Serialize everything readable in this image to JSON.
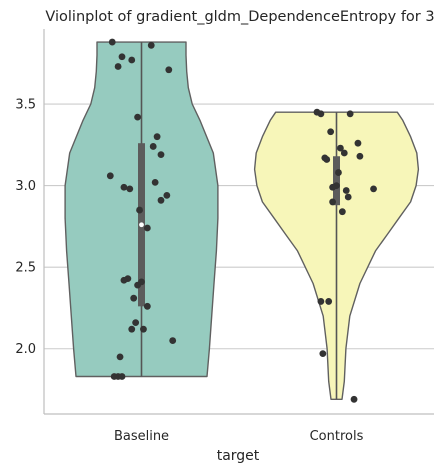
{
  "chart_data": {
    "type": "violin",
    "title": "Violinplot of gradient_gldm_DependenceEntropy for 3",
    "xlabel": "target",
    "ylabel": "",
    "categories": [
      "Baseline",
      "Controls"
    ],
    "ylim": [
      1.6,
      3.96
    ],
    "yticks": [
      2.0,
      2.5,
      3.0,
      3.5
    ],
    "ytick_labels": [
      "2.0",
      "2.5",
      "3.0",
      "3.5"
    ],
    "grid": "horizontal",
    "colors": {
      "Baseline": "#96cbbf",
      "Controls": "#f7f6b9",
      "outline": "#606060",
      "points": "#333333",
      "grid": "#cccccc"
    },
    "violins": [
      {
        "category": "Baseline",
        "min": 1.83,
        "max": 3.88,
        "q1": 2.26,
        "median": 2.76,
        "q3": 3.26,
        "density_y": [
          1.83,
          2.0,
          2.2,
          2.4,
          2.6,
          2.8,
          3.0,
          3.2,
          3.4,
          3.5,
          3.6,
          3.7,
          3.8,
          3.88
        ],
        "density_halfwidth": [
          0.84,
          0.87,
          0.9,
          0.93,
          0.96,
          0.98,
          0.98,
          0.92,
          0.75,
          0.65,
          0.6,
          0.58,
          0.57,
          0.57
        ],
        "points": [
          3.88,
          3.86,
          3.79,
          3.77,
          3.73,
          3.71,
          3.42,
          3.3,
          3.24,
          3.19,
          3.06,
          3.02,
          2.99,
          2.98,
          2.94,
          2.91,
          2.85,
          2.74,
          2.43,
          2.42,
          2.41,
          2.39,
          2.31,
          2.26,
          2.16,
          2.12,
          2.12,
          2.05,
          1.95,
          1.83,
          1.83,
          1.83
        ],
        "jitter": [
          -0.15,
          0.05,
          -0.1,
          -0.05,
          -0.12,
          0.14,
          -0.02,
          0.08,
          0.06,
          0.1,
          -0.16,
          0.07,
          -0.09,
          -0.06,
          0.13,
          0.1,
          -0.01,
          0.03,
          -0.07,
          -0.09,
          0.0,
          -0.02,
          -0.04,
          0.03,
          -0.03,
          -0.05,
          0.01,
          0.16,
          -0.11,
          -0.14,
          -0.12,
          -0.1
        ]
      },
      {
        "category": "Controls",
        "min": 1.69,
        "max": 3.45,
        "q1": 2.88,
        "median": 3.0,
        "q3": 3.18,
        "density_y": [
          1.69,
          1.8,
          2.0,
          2.2,
          2.4,
          2.6,
          2.7,
          2.8,
          2.9,
          3.0,
          3.1,
          3.2,
          3.3,
          3.4,
          3.45
        ],
        "density_halfwidth": [
          0.07,
          0.1,
          0.12,
          0.17,
          0.3,
          0.5,
          0.65,
          0.8,
          0.95,
          1.02,
          1.05,
          1.03,
          0.95,
          0.85,
          0.78
        ],
        "points": [
          3.45,
          3.44,
          3.44,
          3.33,
          3.26,
          3.23,
          3.2,
          3.18,
          3.17,
          3.16,
          3.08,
          3.0,
          2.99,
          2.98,
          2.97,
          2.93,
          2.9,
          2.84,
          2.29,
          2.29,
          1.97,
          1.69
        ],
        "jitter": [
          -0.1,
          -0.08,
          0.07,
          -0.03,
          0.11,
          0.02,
          0.04,
          0.12,
          -0.06,
          -0.05,
          0.01,
          0.0,
          -0.02,
          0.19,
          0.05,
          0.06,
          -0.02,
          0.03,
          -0.08,
          -0.04,
          -0.07,
          0.09
        ]
      }
    ]
  }
}
